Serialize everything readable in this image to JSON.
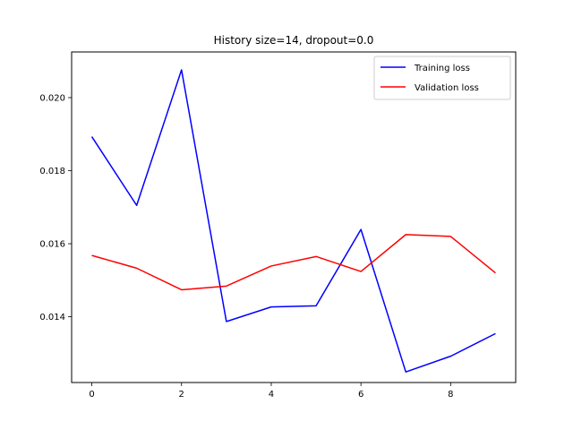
{
  "chart_data": {
    "type": "line",
    "title": "History size=14, dropout=0.0",
    "xlabel": "",
    "ylabel": "",
    "x": [
      0,
      1,
      2,
      3,
      4,
      5,
      6,
      7,
      8,
      9
    ],
    "xlim": [
      -0.45,
      9.45
    ],
    "ylim": [
      0.0122,
      0.02125
    ],
    "xticks": [
      0,
      2,
      4,
      6,
      8
    ],
    "xtick_labels": [
      "0",
      "2",
      "4",
      "6",
      "8"
    ],
    "yticks": [
      0.014,
      0.016,
      0.018,
      0.02
    ],
    "ytick_labels": [
      "0.014",
      "0.016",
      "0.018",
      "0.020"
    ],
    "grid": false,
    "legend_position": "top-right",
    "series": [
      {
        "name": "Training loss",
        "color": "#0000ff",
        "values": [
          0.01893,
          0.01705,
          0.02076,
          0.01387,
          0.01427,
          0.0143,
          0.01639,
          0.01249,
          0.01292,
          0.01354
        ]
      },
      {
        "name": "Validation loss",
        "color": "#ff0000",
        "values": [
          0.01568,
          0.01533,
          0.01474,
          0.01484,
          0.01539,
          0.01565,
          0.01524,
          0.01625,
          0.0162,
          0.0152
        ]
      }
    ]
  }
}
